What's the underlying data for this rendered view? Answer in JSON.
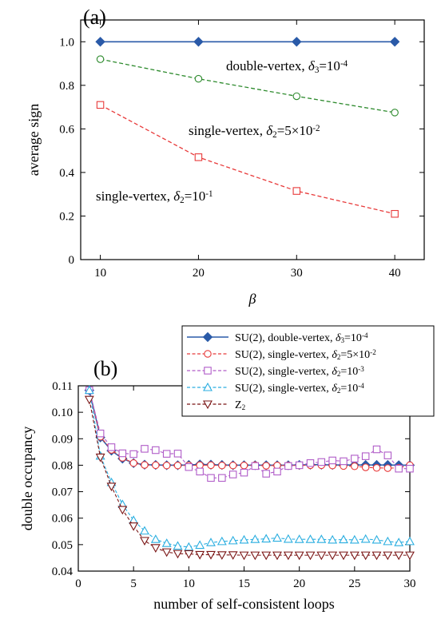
{
  "chart_data": [
    {
      "panel": "(a)",
      "type": "line",
      "xlabel": "β",
      "ylabel": "average sign",
      "xlim": [
        8,
        43
      ],
      "ylim": [
        0,
        1.1
      ],
      "xticks": [
        "10",
        "20",
        "30",
        "40"
      ],
      "yticks": [
        "0",
        "0.2",
        "0.4",
        "0.6",
        "0.8",
        "1.0"
      ],
      "x": [
        10,
        20,
        30,
        40
      ],
      "series": [
        {
          "key": "dv",
          "marker": "diamond",
          "dash": "solid",
          "color": "#2a5aa8",
          "values": [
            1.0,
            1.0,
            1.0,
            1.0
          ]
        },
        {
          "key": "sv5",
          "marker": "circle",
          "dash": "dashed",
          "color": "#2e8b2e",
          "values": [
            0.92,
            0.83,
            0.75,
            0.675
          ]
        },
        {
          "key": "sv1",
          "marker": "square",
          "dash": "dashed",
          "color": "#e83a3a",
          "values": [
            0.71,
            0.47,
            0.315,
            0.21
          ]
        }
      ],
      "annotations": [
        {
          "key": "dv",
          "prefix": "double-vertex, ",
          "sym": "δ",
          "sub": "3",
          "eq": "=10",
          "sup": "-4"
        },
        {
          "key": "sv5",
          "prefix": "single-vertex, ",
          "sym": "δ",
          "sub": "2",
          "eq": "=5×10",
          "sup": "-2"
        },
        {
          "key": "sv1",
          "prefix": "single-vertex, ",
          "sym": "δ",
          "sub": "2",
          "eq": "=10",
          "sup": "-1"
        }
      ]
    },
    {
      "panel": "(b)",
      "type": "line",
      "xlabel": "number of self-consistent loops",
      "ylabel": "double occupancy",
      "xlim": [
        0,
        30
      ],
      "ylim": [
        0.04,
        0.11
      ],
      "xticks": [
        "0",
        "5",
        "10",
        "15",
        "20",
        "25",
        "30"
      ],
      "yticks": [
        "0.04",
        "0.05",
        "0.06",
        "0.07",
        "0.08",
        "0.09",
        "0.10",
        "0.11"
      ],
      "x": [
        1,
        2,
        3,
        4,
        5,
        6,
        7,
        8,
        9,
        10,
        11,
        12,
        13,
        14,
        15,
        16,
        17,
        18,
        19,
        20,
        21,
        22,
        23,
        24,
        25,
        26,
        27,
        28,
        29,
        30
      ],
      "series": [
        {
          "key": "su2_dv",
          "marker": "diamond",
          "dash": "solid",
          "color": "#2a5aa8",
          "legend": {
            "prefix": "SU(2), double-vertex, ",
            "sym": "δ",
            "sub": "3",
            "eq": "=10",
            "sup": "-4"
          },
          "values": [
            0.1083,
            0.0905,
            0.0855,
            0.0825,
            0.0808,
            0.0802,
            0.0801,
            0.08,
            0.08,
            0.0801,
            0.0803,
            0.0802,
            0.0801,
            0.08,
            0.08,
            0.08,
            0.08,
            0.08,
            0.08,
            0.0801,
            0.0802,
            0.0802,
            0.0801,
            0.0801,
            0.0801,
            0.0801,
            0.0801,
            0.0801,
            0.08,
            0.08
          ]
        },
        {
          "key": "su2_sv5",
          "marker": "circle",
          "dash": "dashed",
          "color": "#e83a3a",
          "legend": {
            "prefix": "SU(2), single-vertex, ",
            "sym": "δ",
            "sub": "2",
            "eq": "=5×10",
            "sup": "-2"
          },
          "values": [
            0.1083,
            0.0908,
            0.0858,
            0.0828,
            0.0808,
            0.0801,
            0.08,
            0.0799,
            0.0799,
            0.0799,
            0.08,
            0.08,
            0.0799,
            0.0799,
            0.0799,
            0.08,
            0.0798,
            0.0799,
            0.0799,
            0.0799,
            0.08,
            0.08,
            0.0799,
            0.0797,
            0.0796,
            0.0792,
            0.079,
            0.0789,
            0.079,
            0.08
          ]
        },
        {
          "key": "su2_sv3",
          "marker": "square",
          "dash": "dashed",
          "color": "#b05cc8",
          "legend": {
            "prefix": "SU(2), single-vertex, ",
            "sym": "δ",
            "sub": "2",
            "eq": "=10",
            "sup": "-3"
          },
          "values": [
            0.1083,
            0.092,
            0.0868,
            0.0845,
            0.0842,
            0.0862,
            0.0857,
            0.0843,
            0.0844,
            0.0793,
            0.0776,
            0.0752,
            0.0752,
            0.0765,
            0.0772,
            0.0797,
            0.0768,
            0.0776,
            0.0797,
            0.08,
            0.0808,
            0.0812,
            0.0818,
            0.0815,
            0.0825,
            0.0834,
            0.086,
            0.0837,
            0.0787,
            0.0787
          ]
        },
        {
          "key": "su2_sv4",
          "marker": "triangle-up",
          "dash": "dashed",
          "color": "#2aaee0",
          "legend": {
            "prefix": "SU(2), single-vertex, ",
            "sym": "δ",
            "sub": "2",
            "eq": "=10",
            "sup": "-4"
          },
          "values": [
            0.1083,
            0.0835,
            0.0735,
            0.0652,
            0.0592,
            0.0552,
            0.052,
            0.0505,
            0.0495,
            0.0491,
            0.0498,
            0.0508,
            0.0512,
            0.0515,
            0.0518,
            0.052,
            0.0522,
            0.0525,
            0.0521,
            0.052,
            0.052,
            0.052,
            0.0518,
            0.0519,
            0.0518,
            0.0521,
            0.0518,
            0.0512,
            0.0508,
            0.0512
          ]
        },
        {
          "key": "z2",
          "marker": "triangle-down",
          "dash": "dashed",
          "color": "#7a1515",
          "legend": {
            "prefix": "Z",
            "sym": "",
            "sub": "2",
            "eq": "",
            "sup": ""
          },
          "values": [
            0.1048,
            0.083,
            0.072,
            0.0632,
            0.057,
            0.0515,
            0.0488,
            0.0472,
            0.0466,
            0.0465,
            0.0462,
            0.0462,
            0.0461,
            0.0461,
            0.046,
            0.046,
            0.046,
            0.046,
            0.046,
            0.046,
            0.046,
            0.046,
            0.046,
            0.046,
            0.046,
            0.046,
            0.046,
            0.046,
            0.046,
            0.046
          ]
        }
      ]
    }
  ]
}
